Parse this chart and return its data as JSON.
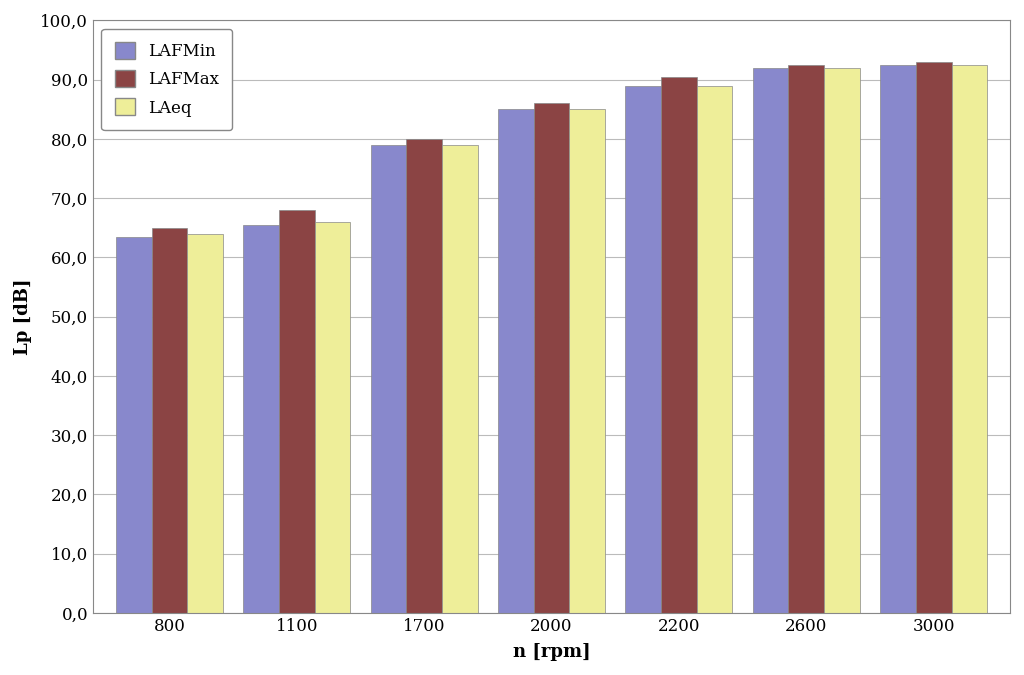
{
  "categories": [
    "800",
    "1100",
    "1700",
    "2000",
    "2200",
    "2600",
    "3000"
  ],
  "LAFMin": [
    63.5,
    65.5,
    79.0,
    85.0,
    89.0,
    92.0,
    92.5
  ],
  "LAFMax": [
    65.0,
    68.0,
    80.0,
    86.0,
    90.5,
    92.5,
    93.0
  ],
  "LAeq": [
    64.0,
    66.0,
    79.0,
    85.0,
    89.0,
    92.0,
    92.5
  ],
  "color_LAFMin": "#8888cc",
  "color_LAFMax": "#8b4444",
  "color_LAeq": "#eeee99",
  "xlabel": "n [rpm]",
  "ylabel": "Lp [dB]",
  "ylim_min": 0.0,
  "ylim_max": 100.0,
  "ytick_step": 10.0,
  "legend_labels": [
    "LAFMin",
    "LAFMax",
    "LAeq"
  ],
  "bar_edge_color": "#888888",
  "background_color": "#ffffff",
  "plot_bg_color": "#ffffff",
  "grid_color": "#bbbbbb",
  "spine_color": "#888888"
}
